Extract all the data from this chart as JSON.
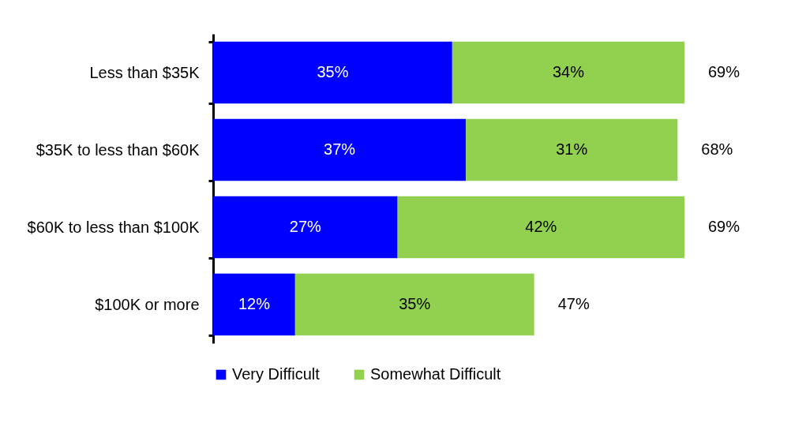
{
  "chart_data": {
    "type": "bar",
    "orientation": "horizontal",
    "stacked": true,
    "categories": [
      "Less than $35K",
      "$35K to less than  $60K",
      "$60K to less than  $100K",
      "$100K or more"
    ],
    "series": [
      {
        "name": "Very Difficult",
        "color": "#0000ff",
        "values": [
          35,
          37,
          27,
          12
        ],
        "value_labels": [
          "35%",
          "37%",
          "27%",
          "12%"
        ]
      },
      {
        "name": "Somewhat Difficult",
        "color": "#92d050",
        "values": [
          34,
          31,
          42,
          35
        ],
        "value_labels": [
          "34%",
          "31%",
          "42%",
          "35%"
        ]
      }
    ],
    "totals": [
      "69%",
      "68%",
      "69%",
      "47%"
    ],
    "legend": "bottom",
    "tick_labels": "y"
  }
}
